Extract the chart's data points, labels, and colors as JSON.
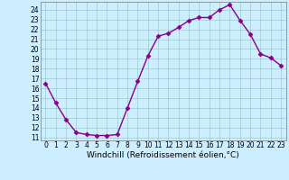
{
  "x": [
    0,
    1,
    2,
    3,
    4,
    5,
    6,
    7,
    8,
    9,
    10,
    11,
    12,
    13,
    14,
    15,
    16,
    17,
    18,
    19,
    20,
    21,
    22,
    23
  ],
  "y": [
    16.5,
    14.5,
    12.8,
    11.5,
    11.3,
    11.2,
    11.2,
    11.3,
    14.0,
    16.7,
    19.3,
    21.3,
    21.6,
    22.2,
    22.9,
    23.2,
    23.2,
    24.0,
    24.5,
    22.9,
    21.5,
    19.5,
    19.1,
    18.3
  ],
  "xlim_min": -0.5,
  "xlim_max": 23.5,
  "ylim_min": 10.7,
  "ylim_max": 24.8,
  "yticks": [
    11,
    12,
    13,
    14,
    15,
    16,
    17,
    18,
    19,
    20,
    21,
    22,
    23,
    24
  ],
  "xticks": [
    0,
    1,
    2,
    3,
    4,
    5,
    6,
    7,
    8,
    9,
    10,
    11,
    12,
    13,
    14,
    15,
    16,
    17,
    18,
    19,
    20,
    21,
    22,
    23
  ],
  "xlabel": "Windchill (Refroidissement éolien,°C)",
  "line_color": "#880088",
  "marker": "D",
  "marker_size": 2.5,
  "bg_color": "#cceeff",
  "grid_color": "#99cccc",
  "tick_fontsize": 5.5,
  "xlabel_fontsize": 6.5,
  "linewidth": 1.0
}
